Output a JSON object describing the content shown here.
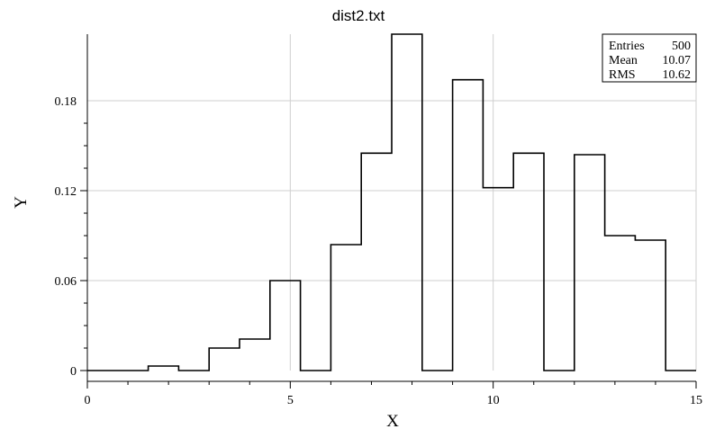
{
  "chart_data": {
    "type": "histogram",
    "title": "dist2.txt",
    "xlabel": "X",
    "ylabel": "Y",
    "xlim": [
      0,
      15
    ],
    "ylim": [
      0,
      0.2
    ],
    "x_ticks": [
      0,
      5,
      10,
      15
    ],
    "y_ticks": [
      0,
      0.06,
      0.12,
      0.18
    ],
    "x_tick_labels": [
      "0",
      "5",
      "10",
      "15"
    ],
    "y_tick_labels": [
      "0",
      "0.06",
      "0.12",
      "0.18"
    ],
    "grid": true,
    "bin_edges": [
      0,
      0.75,
      1.5,
      2.25,
      3.0,
      3.75,
      4.5,
      5.25,
      6.0,
      6.75,
      7.5,
      8.25,
      9.0,
      9.75,
      10.5,
      11.25,
      12.0,
      12.75,
      13.5,
      14.25,
      15.0
    ],
    "values": [
      0,
      0,
      0.003,
      0,
      0.015,
      0.021,
      0.06,
      0,
      0.084,
      0.145,
      0.225,
      0,
      0.194,
      0.122,
      0.145,
      0,
      0.144,
      0.09,
      0.087,
      0
    ],
    "legend": "top-right",
    "stats": {
      "rows": [
        {
          "label": "Entries",
          "value": "500"
        },
        {
          "label": "Mean",
          "value": "10.07"
        },
        {
          "label": "RMS",
          "value": "10.62"
        }
      ]
    }
  }
}
